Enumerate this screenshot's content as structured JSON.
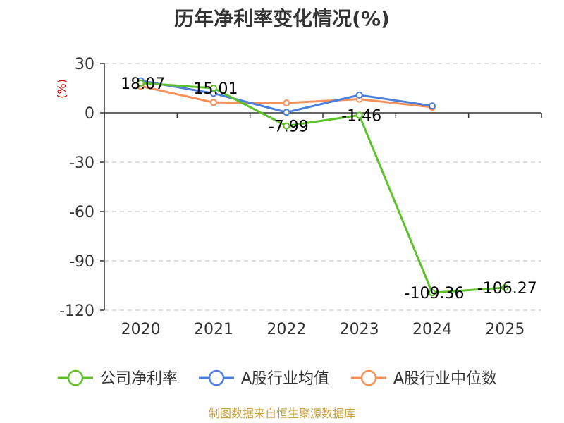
{
  "chart_data": {
    "type": "line",
    "title": "历年净利率变化情况(%)",
    "ylabel": "(%)",
    "xlabel": "",
    "categories": [
      "2020",
      "2021",
      "2022",
      "2023",
      "2024",
      "2025"
    ],
    "ylim": [
      -120,
      30
    ],
    "yticks": [
      30,
      0,
      -30,
      -60,
      -90,
      -120
    ],
    "grid": true,
    "legend_position": "bottom",
    "series": [
      {
        "name": "公司净利率",
        "color": "#5cc22a",
        "values": [
          18.07,
          15.01,
          -7.99,
          -1.46,
          -109.36,
          -106.27
        ],
        "labels": [
          "18.07",
          "15.01",
          "-7.99",
          "-1.46",
          "-109.36",
          "-106.27"
        ]
      },
      {
        "name": "A股行业均值",
        "color": "#4a7fdc",
        "values": [
          19.5,
          11.8,
          0.3,
          10.8,
          4.2,
          null
        ]
      },
      {
        "name": "A股行业中位数",
        "color": "#f59159",
        "values": [
          16.2,
          6.3,
          6.0,
          8.3,
          3.4,
          null
        ]
      }
    ],
    "source": "制图数据来自恒生聚源数据库"
  }
}
